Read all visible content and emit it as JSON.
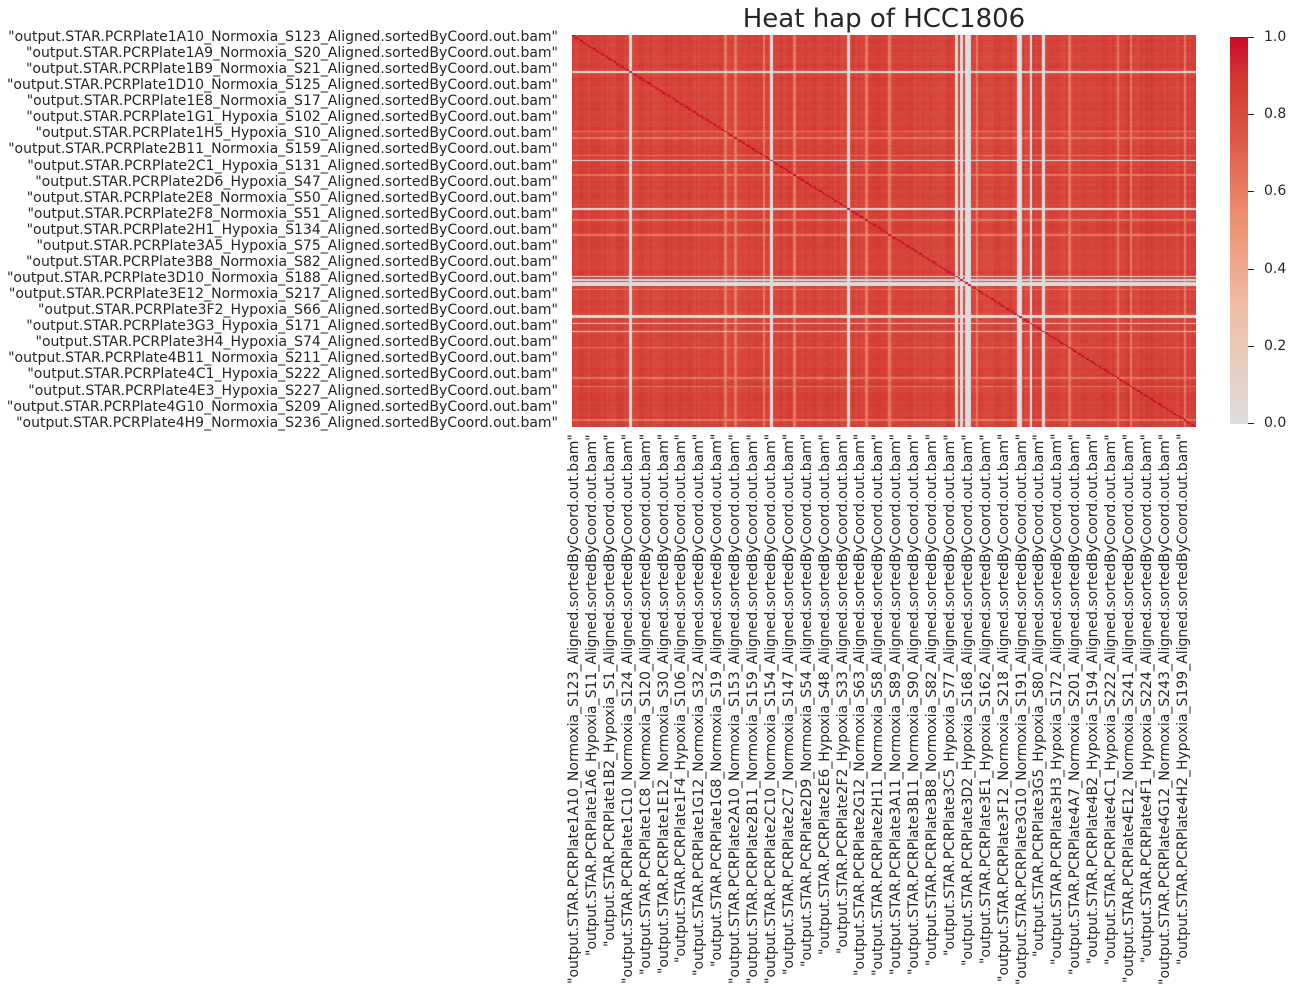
{
  "chart_data": {
    "type": "heatmap",
    "title": "Heat hap of HCC1806",
    "xlabel": "",
    "ylabel": "",
    "colormap": "coolwarm-light",
    "vmin": 0.0,
    "vmax": 1.0,
    "colorbar_ticks": [
      "0.0",
      "0.2",
      "0.4",
      "0.6",
      "0.8",
      "1.0"
    ],
    "grid": false,
    "diagonal_value": 1.0,
    "typical_offdiagonal_range": [
      0.75,
      0.92
    ],
    "zero_row_col_indices": [
      22,
      77,
      107,
      149,
      151,
      153,
      154,
      173,
      174,
      178,
      183
    ],
    "n_samples": 243,
    "row_labels": [
      "\"output.STAR.PCRPlate1A10_Normoxia_S123_Aligned.sortedByCoord.out.bam\"",
      "\"output.STAR.PCRPlate1A9_Normoxia_S20_Aligned.sortedByCoord.out.bam\"",
      "\"output.STAR.PCRPlate1B9_Normoxia_S21_Aligned.sortedByCoord.out.bam\"",
      "\"output.STAR.PCRPlate1D10_Normoxia_S125_Aligned.sortedByCoord.out.bam\"",
      "\"output.STAR.PCRPlate1E8_Normoxia_S17_Aligned.sortedByCoord.out.bam\"",
      "\"output.STAR.PCRPlate1G1_Hypoxia_S102_Aligned.sortedByCoord.out.bam\"",
      "\"output.STAR.PCRPlate1H5_Hypoxia_S10_Aligned.sortedByCoord.out.bam\"",
      "\"output.STAR.PCRPlate2B11_Normoxia_S159_Aligned.sortedByCoord.out.bam\"",
      "\"output.STAR.PCRPlate2C1_Hypoxia_S131_Aligned.sortedByCoord.out.bam\"",
      "\"output.STAR.PCRPlate2D6_Hypoxia_S47_Aligned.sortedByCoord.out.bam\"",
      "\"output.STAR.PCRPlate2E8_Normoxia_S50_Aligned.sortedByCoord.out.bam\"",
      "\"output.STAR.PCRPlate2F8_Normoxia_S51_Aligned.sortedByCoord.out.bam\"",
      "\"output.STAR.PCRPlate2H1_Hypoxia_S134_Aligned.sortedByCoord.out.bam\"",
      "\"output.STAR.PCRPlate3A5_Hypoxia_S75_Aligned.sortedByCoord.out.bam\"",
      "\"output.STAR.PCRPlate3B8_Normoxia_S82_Aligned.sortedByCoord.out.bam\"",
      "\"output.STAR.PCRPlate3D10_Normoxia_S188_Aligned.sortedByCoord.out.bam\"",
      "\"output.STAR.PCRPlate3E12_Normoxia_S217_Aligned.sortedByCoord.out.bam\"",
      "\"output.STAR.PCRPlate3F2_Hypoxia_S66_Aligned.sortedByCoord.out.bam\"",
      "\"output.STAR.PCRPlate3G3_Hypoxia_S171_Aligned.sortedByCoord.out.bam\"",
      "\"output.STAR.PCRPlate3H4_Hypoxia_S74_Aligned.sortedByCoord.out.bam\"",
      "\"output.STAR.PCRPlate4B11_Normoxia_S211_Aligned.sortedByCoord.out.bam\"",
      "\"output.STAR.PCRPlate4C1_Hypoxia_S222_Aligned.sortedByCoord.out.bam\"",
      "\"output.STAR.PCRPlate4E3_Hypoxia_S227_Aligned.sortedByCoord.out.bam\"",
      "\"output.STAR.PCRPlate4G10_Normoxia_S209_Aligned.sortedByCoord.out.bam\"",
      "\"output.STAR.PCRPlate4H9_Normoxia_S236_Aligned.sortedByCoord.out.bam\""
    ],
    "col_labels": [
      "\"output.STAR.PCRPlate1A10_Normoxia_S123_Aligned.sortedByCoord.out.bam\"",
      "\"output.STAR.PCRPlate1A6_Hypoxia_S11_Aligned.sortedByCoord.out.bam\"",
      "\"output.STAR.PCRPlate1B2_Hypoxia_S1_Aligned.sortedByCoord.out.bam\"",
      "\"output.STAR.PCRPlate1C10_Normoxia_S124_Aligned.sortedByCoord.out.bam\"",
      "\"output.STAR.PCRPlate1C8_Normoxia_S120_Aligned.sortedByCoord.out.bam\"",
      "\"output.STAR.PCRPlate1E12_Normoxia_S30_Aligned.sortedByCoord.out.bam\"",
      "\"output.STAR.PCRPlate1F4_Hypoxia_S106_Aligned.sortedByCoord.out.bam\"",
      "\"output.STAR.PCRPlate1G12_Normoxia_S32_Aligned.sortedByCoord.out.bam\"",
      "\"output.STAR.PCRPlate1G8_Normoxia_S19_Aligned.sortedByCoord.out.bam\"",
      "\"output.STAR.PCRPlate2A10_Normoxia_S153_Aligned.sortedByCoord.out.bam\"",
      "\"output.STAR.PCRPlate2B11_Normoxia_S159_Aligned.sortedByCoord.out.bam\"",
      "\"output.STAR.PCRPlate2C10_Normoxia_S154_Aligned.sortedByCoord.out.bam\"",
      "\"output.STAR.PCRPlate2C7_Normoxia_S147_Aligned.sortedByCoord.out.bam\"",
      "\"output.STAR.PCRPlate2D9_Normoxia_S54_Aligned.sortedByCoord.out.bam\"",
      "\"output.STAR.PCRPlate2E6_Hypoxia_S48_Aligned.sortedByCoord.out.bam\"",
      "\"output.STAR.PCRPlate2F2_Hypoxia_S33_Aligned.sortedByCoord.out.bam\"",
      "\"output.STAR.PCRPlate2G12_Normoxia_S63_Aligned.sortedByCoord.out.bam\"",
      "\"output.STAR.PCRPlate2H11_Normoxia_S58_Aligned.sortedByCoord.out.bam\"",
      "\"output.STAR.PCRPlate3A11_Normoxia_S89_Aligned.sortedByCoord.out.bam\"",
      "\"output.STAR.PCRPlate3B11_Normoxia_S90_Aligned.sortedByCoord.out.bam\"",
      "\"output.STAR.PCRPlate3B8_Normoxia_S82_Aligned.sortedByCoord.out.bam\"",
      "\"output.STAR.PCRPlate3C5_Hypoxia_S77_Aligned.sortedByCoord.out.bam\"",
      "\"output.STAR.PCRPlate3D2_Hypoxia_S168_Aligned.sortedByCoord.out.bam\"",
      "\"output.STAR.PCRPlate3E1_Hypoxia_S162_Aligned.sortedByCoord.out.bam\"",
      "\"output.STAR.PCRPlate3F12_Normoxia_S218_Aligned.sortedByCoord.out.bam\"",
      "\"output.STAR.PCRPlate3G10_Normoxia_S191_Aligned.sortedByCoord.out.bam\"",
      "\"output.STAR.PCRPlate3G5_Hypoxia_S80_Aligned.sortedByCoord.out.bam\"",
      "\"output.STAR.PCRPlate3H3_Hypoxia_S172_Aligned.sortedByCoord.out.bam\"",
      "\"output.STAR.PCRPlate4A7_Normoxia_S201_Aligned.sortedByCoord.out.bam\"",
      "\"output.STAR.PCRPlate4B2_Hypoxia_S194_Aligned.sortedByCoord.out.bam\"",
      "\"output.STAR.PCRPlate4C1_Hypoxia_S222_Aligned.sortedByCoord.out.bam\"",
      "\"output.STAR.PCRPlate4E12_Normoxia_S241_Aligned.sortedByCoord.out.bam\"",
      "\"output.STAR.PCRPlate4F1_Hypoxia_S224_Aligned.sortedByCoord.out.bam\"",
      "\"output.STAR.PCRPlate4G12_Normoxia_S243_Aligned.sortedByCoord.out.bam\"",
      "\"output.STAR.PCRPlate4H2_Hypoxia_S199_Aligned.sortedByCoord.out.bam\""
    ]
  }
}
